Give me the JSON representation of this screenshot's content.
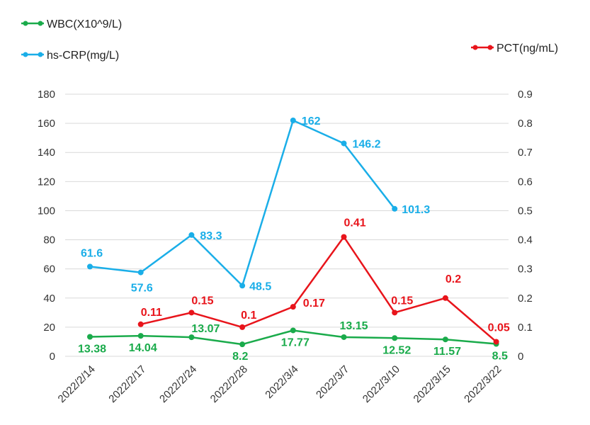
{
  "chart_data": {
    "type": "line",
    "categories": [
      "2022/2/14",
      "2022/2/17",
      "2022/2/24",
      "2022/2/28",
      "2022/3/4",
      "2022/3/7",
      "2022/3/10",
      "2022/3/15",
      "2022/3/22"
    ],
    "left_axis": {
      "ylim": [
        0,
        180
      ],
      "ticks": [
        "0",
        "20",
        "40",
        "60",
        "80",
        "100",
        "120",
        "140",
        "160",
        "180"
      ]
    },
    "right_axis": {
      "ylim": [
        0,
        0.9
      ],
      "ticks": [
        "0",
        "0.1",
        "0.2",
        "0.3",
        "0.4",
        "0.5",
        "0.6",
        "0.7",
        "0.8",
        "0.9"
      ]
    },
    "grid": true,
    "series": [
      {
        "name": "WBC(X10^9/L)",
        "axis": "left",
        "color": "#1aab4b",
        "values": [
          13.38,
          14.04,
          13.07,
          8.2,
          17.77,
          13.15,
          12.52,
          11.57,
          8.5
        ],
        "labels": [
          "13.38",
          "14.04",
          "13.07",
          "8.2",
          "17.77",
          "13.15",
          "12.52",
          "11.57",
          "8.5"
        ]
      },
      {
        "name": "hs-CRP(mg/L)",
        "axis": "left",
        "color": "#1aaee8",
        "values": [
          61.6,
          57.6,
          83.3,
          48.5,
          162,
          146.2,
          101.3,
          null,
          null
        ],
        "labels": [
          "61.6",
          "57.6",
          "83.3",
          "48.5",
          "162",
          "146.2",
          "101.3",
          "",
          ""
        ]
      },
      {
        "name": "PCT(ng/mL)",
        "axis": "right",
        "color": "#e8141b",
        "values": [
          null,
          0.11,
          0.15,
          0.1,
          0.17,
          0.41,
          0.15,
          0.2,
          0.05
        ],
        "labels": [
          "",
          "0.11",
          "0.15",
          "0.1",
          "0.17",
          "0.41",
          "0.15",
          "0.2",
          "0.05"
        ]
      }
    ]
  }
}
